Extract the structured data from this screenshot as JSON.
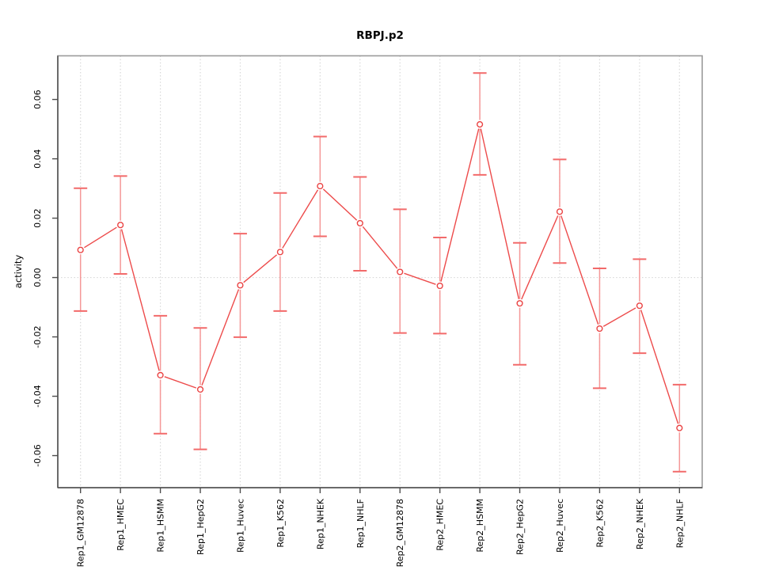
{
  "figure": {
    "title": "RBPJ.p2",
    "ylabel": "activity"
  },
  "chart_data": {
    "type": "line",
    "subtype": "points-with-error-bars",
    "title": "RBPJ.p2",
    "xlabel": "",
    "ylabel": "activity",
    "legend": "none",
    "grid": "vertical dotted gridlines at each category plus dotted horizontal line at 0",
    "categories": [
      "Rep1_GM12878",
      "Rep1_HMEC",
      "Rep1_HSMM",
      "Rep1_HepG2",
      "Rep1_Huvec",
      "Rep1_K562",
      "Rep1_NHEK",
      "Rep1_NHLF",
      "Rep2_GM12878",
      "Rep2_HMEC",
      "Rep2_HSMM",
      "Rep2_HepG2",
      "Rep2_Huvec",
      "Rep2_K562",
      "Rep2_NHEK",
      "Rep2_NHLF"
    ],
    "series": [
      {
        "name": "activity",
        "values": [
          0.0093,
          0.0177,
          -0.0329,
          -0.0377,
          -0.0026,
          0.0086,
          0.0308,
          0.0183,
          0.0019,
          -0.0028,
          0.0516,
          -0.0087,
          0.0222,
          -0.0172,
          -0.0095,
          -0.0507
        ],
        "upper": [
          0.0301,
          0.0342,
          -0.0129,
          -0.017,
          0.0148,
          0.0285,
          0.0475,
          0.0339,
          0.023,
          0.0135,
          0.0689,
          0.0117,
          0.0398,
          0.0031,
          0.0062,
          -0.0361
        ],
        "lower": [
          -0.0113,
          0.0012,
          -0.0526,
          -0.0579,
          -0.0201,
          -0.0113,
          0.0139,
          0.0023,
          -0.0187,
          -0.0189,
          0.0346,
          -0.0294,
          0.0049,
          -0.0373,
          -0.0255,
          -0.0654
        ]
      }
    ],
    "yticks": [
      0.06,
      0.04,
      0.02,
      0,
      -0.02,
      -0.04,
      -0.06
    ],
    "ylim": [
      -0.0708,
      0.0747
    ],
    "colors": {
      "line": "#ed4b4b",
      "errorbar": "#f59898",
      "cap": "#f26a6a",
      "marker": "#ea4242",
      "grid": "#d8d8d8",
      "frame": "#9b9b9b",
      "axis": "#4d4d4d",
      "text": "#000000",
      "background": "#ffffff"
    }
  }
}
